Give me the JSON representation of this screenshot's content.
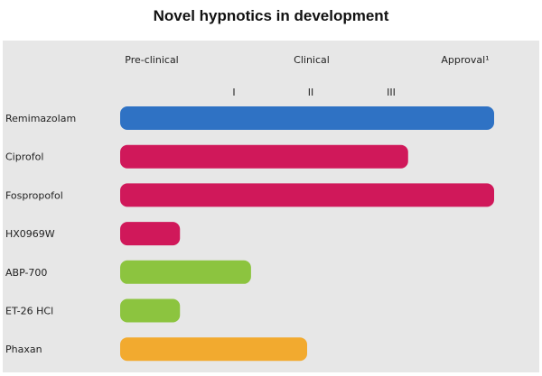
{
  "chart_data": {
    "type": "bar",
    "orientation": "horizontal",
    "title": "Novel hypnotics in development",
    "stage_labels": [
      "Pre-clinical",
      "Clinical",
      "Approval¹"
    ],
    "phase_labels": [
      "I",
      "II",
      "III"
    ],
    "value_unit": "fraction of development pipeline from pre-clinical to approval",
    "xlim": [
      0,
      1
    ],
    "categories": [
      "Remimazolam",
      "Ciprofol",
      "Fospropofol",
      "HX0969W",
      "ABP-700",
      "ET-26 HCl",
      "Phaxan"
    ],
    "values": [
      1.0,
      0.77,
      1.0,
      0.16,
      0.35,
      0.16,
      0.5
    ],
    "colors": [
      "#2f72c4",
      "#d0185a",
      "#d0185a",
      "#d0185a",
      "#8cc43f",
      "#8cc43f",
      "#f2aa2f"
    ],
    "grid": false,
    "legend": "none"
  }
}
